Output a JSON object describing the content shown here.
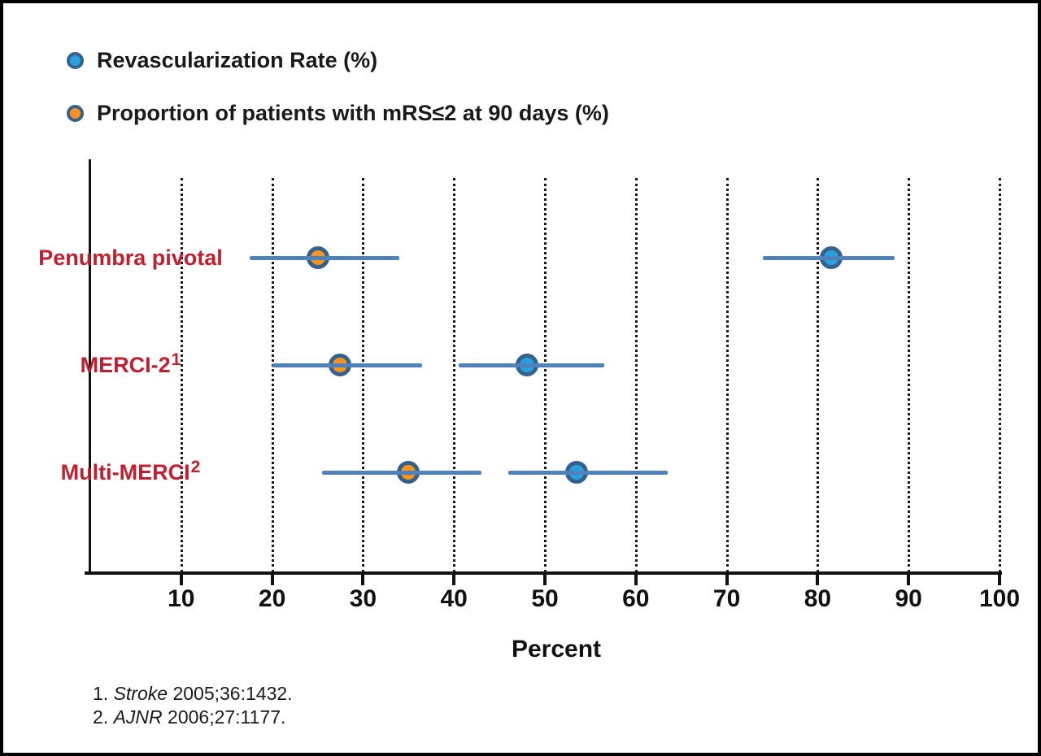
{
  "colors": {
    "blue_fill": "#2aa0dc",
    "orange_fill": "#f7941e",
    "marker_ring": "#35618f",
    "ci_line": "#4f81bb",
    "category_label": "#c01f30",
    "axis": "#111111"
  },
  "legend": {
    "items": [
      {
        "name": "revascularization",
        "label": "Revascularization Rate (%)",
        "fill": "#2aa0dc"
      },
      {
        "name": "mrs",
        "label": "Proportion of patients with mRS≤2 at 90 days (%)",
        "fill": "#f7941e"
      }
    ]
  },
  "chart_data": {
    "type": "scatter",
    "subtype": "forest-plot-dot-with-ci",
    "title": "",
    "xlabel": "Percent",
    "ylabel": "",
    "xlim": [
      0,
      100
    ],
    "xticks": [
      10,
      20,
      30,
      40,
      50,
      60,
      70,
      80,
      90,
      100
    ],
    "grid": "vertical-dotted",
    "legend_position": "top-left",
    "categories": [
      "Penumbra pivotal",
      "MERCI-2",
      "Multi-MERCI"
    ],
    "category_superscripts": [
      "",
      "1",
      "2"
    ],
    "series": [
      {
        "name": "Revascularization Rate (%)",
        "color": "#2aa0dc",
        "points": [
          {
            "category": "Penumbra pivotal",
            "value": 81.5,
            "ci": [
              74,
              88.5
            ]
          },
          {
            "category": "MERCI-2",
            "value": 48,
            "ci": [
              40.5,
              56.5
            ]
          },
          {
            "category": "Multi-MERCI",
            "value": 53.5,
            "ci": [
              46,
              63.5
            ]
          }
        ]
      },
      {
        "name": "Proportion of patients with mRS≤2 at 90 days (%)",
        "color": "#f7941e",
        "points": [
          {
            "category": "Penumbra pivotal",
            "value": 25,
            "ci": [
              17.5,
              34
            ]
          },
          {
            "category": "MERCI-2",
            "value": 27.5,
            "ci": [
              20,
              36.5
            ]
          },
          {
            "category": "Multi-MERCI",
            "value": 35,
            "ci": [
              25.5,
              43
            ]
          }
        ]
      }
    ]
  },
  "footnotes": [
    {
      "num": "1.",
      "journal": "Stroke",
      "citation": "2005;36:1432."
    },
    {
      "num": "2.",
      "journal": "AJNR",
      "citation": "2006;27:1177."
    }
  ]
}
